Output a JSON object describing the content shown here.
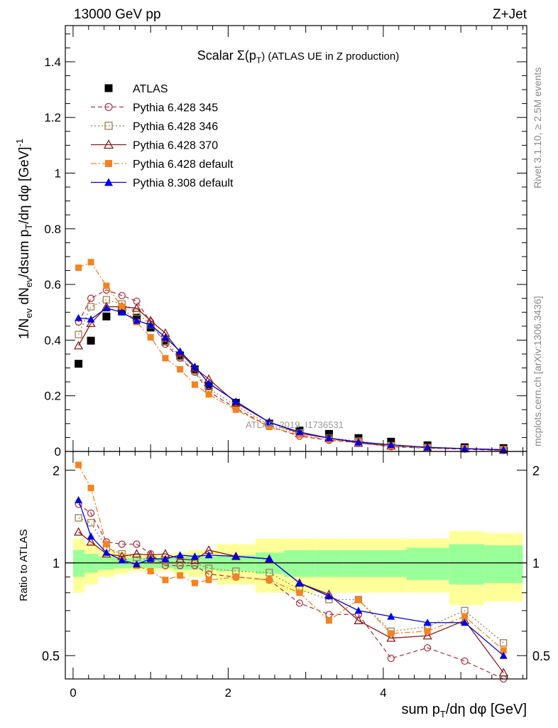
{
  "header": {
    "energy": "13000 GeV pp",
    "process": "Z+Jet",
    "title_main": "Scalar Σ(p",
    "title_sub": "T",
    "title_tail": ") (ATLAS UE in Z production)",
    "side_top": "Rivet 3.1.10, ≥ 2.5M events",
    "side_bottom": "mcplots.cern.ch [arXiv:1306.3436]",
    "watermark": "ATLAS_2019_I1736531"
  },
  "axes": {
    "ylabel_main": "1/N_ev dN_ev/dsum p_T/dη dφ [GeV]^-1",
    "ylabel_ratio": "Ratio to ATLAS",
    "xlabel": "sum p_T/dη dφ [GeV]",
    "y_ticks": [
      "0",
      "0.2",
      "0.4",
      "0.6",
      "0.8",
      "1",
      "1.2",
      "1.4"
    ],
    "x_ticks": [
      "0",
      "2",
      "4"
    ],
    "ratio_ticks": [
      "0.5",
      "1",
      "2"
    ]
  },
  "chart_data": {
    "type": "line",
    "xlim": [
      -0.1,
      5.85
    ],
    "ylim": [
      0,
      1.53
    ],
    "ratio_ylim": [
      0.42,
      2.3
    ],
    "ratio_scale": "log",
    "x": [
      0.07,
      0.23,
      0.43,
      0.63,
      0.82,
      1.0,
      1.19,
      1.38,
      1.57,
      1.75,
      2.1,
      2.53,
      2.92,
      3.3,
      3.68,
      4.1,
      4.57,
      5.05,
      5.55
    ],
    "x_ratio": [
      0.07,
      0.23,
      0.43,
      0.63,
      0.82,
      1.0,
      1.19,
      1.38,
      1.57,
      1.75,
      2.1,
      2.53,
      2.92,
      3.3,
      3.68,
      4.1,
      4.57,
      5.05,
      5.55
    ],
    "ratio_reference": 1,
    "series": [
      {
        "name": "ATLAS",
        "color": "#000000",
        "marker": "square-filled",
        "line": "none",
        "values": [
          0.315,
          0.398,
          0.485,
          0.505,
          0.48,
          0.445,
          0.395,
          0.345,
          0.295,
          0.235,
          0.175,
          0.1,
          0.075,
          0.063,
          0.048,
          0.035,
          0.022,
          0.015,
          0.012
        ]
      },
      {
        "name": "Pythia 6.428 345",
        "color": "#b03a48",
        "marker": "circle-open",
        "line": "dashed",
        "values": [
          0.465,
          0.55,
          0.58,
          0.56,
          0.54,
          0.465,
          0.385,
          0.335,
          0.285,
          0.215,
          0.155,
          0.09,
          0.055,
          0.04,
          0.032,
          0.017,
          0.012,
          0.008,
          0.004
        ],
        "ratio": [
          1.55,
          1.45,
          1.17,
          1.15,
          1.15,
          1.07,
          0.98,
          0.98,
          0.98,
          0.92,
          0.9,
          0.88,
          0.74,
          0.68,
          0.68,
          0.49,
          0.53,
          0.48,
          0.39
        ]
      },
      {
        "name": "Pythia 6.428 346",
        "color": "#a0814e",
        "marker": "square-open",
        "line": "dotted",
        "values": [
          0.42,
          0.52,
          0.545,
          0.53,
          0.5,
          0.455,
          0.395,
          0.34,
          0.29,
          0.225,
          0.165,
          0.095,
          0.065,
          0.048,
          0.037,
          0.021,
          0.014,
          0.01,
          0.007
        ],
        "ratio": [
          1.4,
          1.35,
          1.12,
          1.07,
          1.04,
          1.02,
          1.01,
          1.0,
          1.0,
          0.96,
          0.94,
          0.93,
          0.82,
          0.76,
          0.76,
          0.6,
          0.62,
          0.7,
          0.55
        ]
      },
      {
        "name": "Pythia 6.428 370",
        "color": "#8b1a1a",
        "marker": "triangle-open",
        "line": "solid",
        "values": [
          0.38,
          0.46,
          0.52,
          0.52,
          0.515,
          0.47,
          0.425,
          0.355,
          0.3,
          0.26,
          0.175,
          0.105,
          0.065,
          0.048,
          0.03,
          0.02,
          0.013,
          0.01,
          0.005
        ],
        "ratio": [
          1.26,
          1.17,
          1.07,
          1.05,
          1.07,
          1.06,
          1.07,
          1.03,
          1.02,
          1.1,
          1.05,
          1.03,
          0.86,
          0.79,
          0.65,
          0.57,
          0.58,
          0.65,
          0.44
        ]
      },
      {
        "name": "Pythia 6.428 default",
        "color": "#f58220",
        "marker": "square-filled",
        "line": "dashdot",
        "values": [
          0.66,
          0.68,
          0.595,
          0.52,
          0.465,
          0.41,
          0.335,
          0.295,
          0.24,
          0.205,
          0.15,
          0.088,
          0.06,
          0.042,
          0.035,
          0.02,
          0.013,
          0.011,
          0.007
        ],
        "ratio": [
          2.08,
          1.75,
          1.15,
          1.02,
          0.98,
          0.94,
          0.88,
          0.91,
          0.86,
          0.88,
          0.9,
          0.88,
          0.8,
          0.65,
          0.76,
          0.59,
          0.6,
          0.67,
          0.52
        ]
      },
      {
        "name": "Pythia 8.308 default",
        "color": "#0000e0",
        "marker": "triangle-filled",
        "line": "solid",
        "values": [
          0.48,
          0.475,
          0.515,
          0.5,
          0.47,
          0.455,
          0.41,
          0.36,
          0.305,
          0.245,
          0.18,
          0.105,
          0.07,
          0.048,
          0.034,
          0.024,
          0.015,
          0.01,
          0.006
        ],
        "ratio": [
          1.6,
          1.22,
          1.08,
          1.02,
          0.99,
          1.03,
          1.03,
          1.06,
          1.05,
          1.06,
          1.05,
          1.03,
          0.86,
          0.78,
          0.7,
          0.67,
          0.64,
          0.64,
          0.5
        ]
      }
    ],
    "error_bands": {
      "edges": [
        0.0,
        0.15,
        0.32,
        0.53,
        0.72,
        0.9,
        1.1,
        1.29,
        1.48,
        1.66,
        1.85,
        2.35,
        2.72,
        3.12,
        3.48,
        3.9,
        4.3,
        4.85,
        5.3,
        5.8
      ],
      "green_half_width": [
        0.1,
        0.07,
        0.05,
        0.04,
        0.04,
        0.04,
        0.04,
        0.05,
        0.05,
        0.05,
        0.06,
        0.08,
        0.1,
        0.1,
        0.1,
        0.1,
        0.12,
        0.15,
        0.14
      ],
      "yellow_half_width": [
        0.2,
        0.15,
        0.1,
        0.08,
        0.06,
        0.06,
        0.06,
        0.08,
        0.1,
        0.1,
        0.15,
        0.2,
        0.2,
        0.2,
        0.2,
        0.2,
        0.2,
        0.27,
        0.25
      ],
      "green_color": "#99ff99",
      "yellow_color": "#ffff99"
    }
  }
}
